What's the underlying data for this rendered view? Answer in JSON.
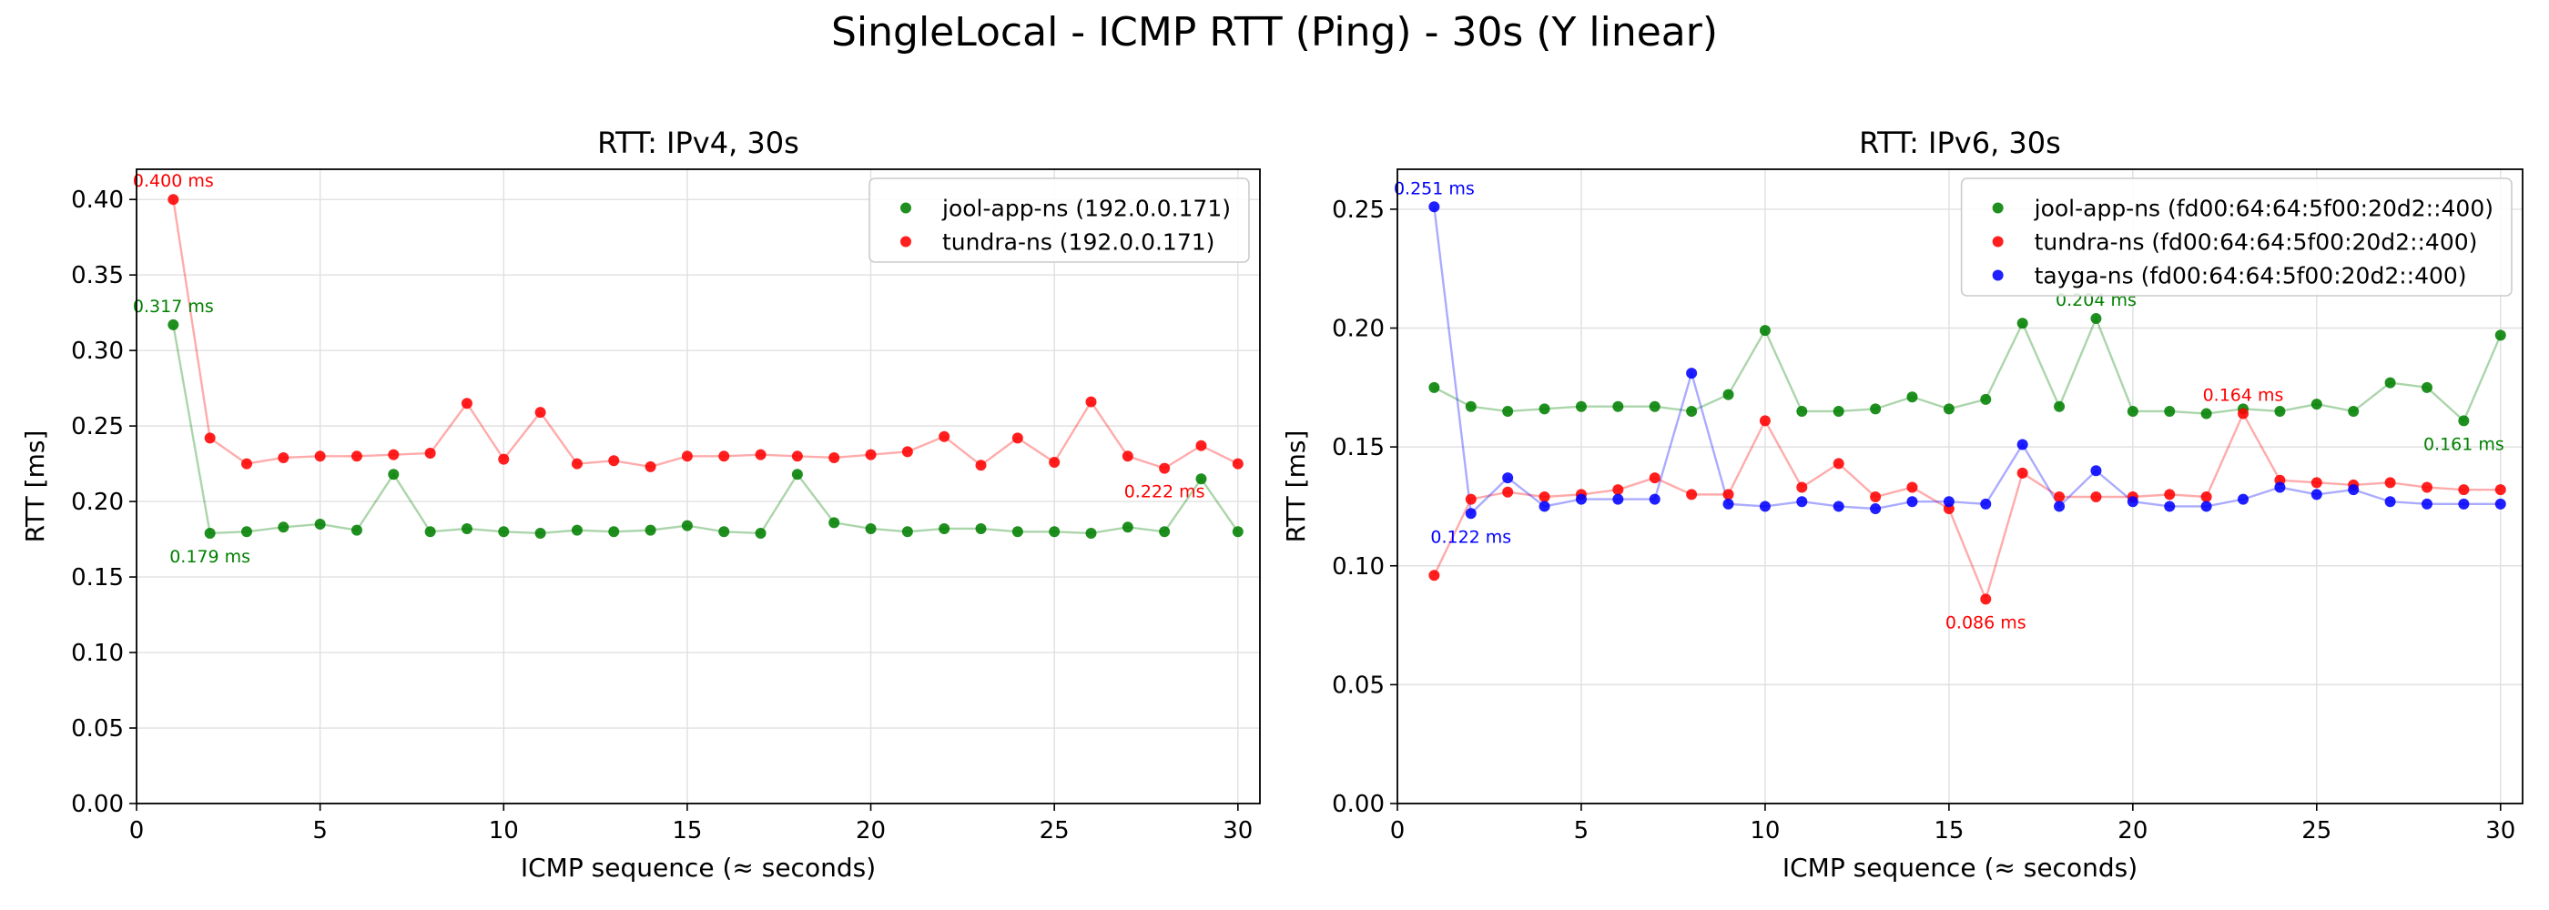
{
  "figure": {
    "title": "SingleLocal - ICMP RTT (Ping) - 30s (Y linear)"
  },
  "colors": {
    "green": "#008000",
    "red": "#ff0000",
    "blue": "#0000ff",
    "grid": "#e0e0e0"
  },
  "chart_data": [
    {
      "type": "line",
      "title": "RTT: IPv4, 30s",
      "xlabel": "ICMP sequence (≈ seconds)",
      "ylabel": "RTT [ms]",
      "xlim": [
        0,
        30.6
      ],
      "ylim": [
        0,
        0.42
      ],
      "xticks": [
        0,
        5,
        10,
        15,
        20,
        25,
        30
      ],
      "yticks": [
        0.0,
        0.05,
        0.1,
        0.15,
        0.2,
        0.25,
        0.3,
        0.35,
        0.4
      ],
      "ytick_labels": [
        "0.00",
        "0.05",
        "0.10",
        "0.15",
        "0.20",
        "0.25",
        "0.30",
        "0.35",
        "0.40"
      ],
      "grid": true,
      "legend_position": "top-right",
      "x": [
        1,
        2,
        3,
        4,
        5,
        6,
        7,
        8,
        9,
        10,
        11,
        12,
        13,
        14,
        15,
        16,
        17,
        18,
        19,
        20,
        21,
        22,
        23,
        24,
        25,
        26,
        27,
        28,
        29,
        30
      ],
      "series": [
        {
          "name": "jool-app-ns (192.0.0.171)",
          "color": "#008000",
          "values": [
            0.317,
            0.179,
            0.18,
            0.183,
            0.185,
            0.181,
            0.218,
            0.18,
            0.182,
            0.18,
            0.179,
            0.181,
            0.18,
            0.181,
            0.184,
            0.18,
            0.179,
            0.218,
            0.186,
            0.182,
            0.18,
            0.182,
            0.182,
            0.18,
            0.18,
            0.179,
            0.183,
            0.18,
            0.215,
            0.18
          ]
        },
        {
          "name": "tundra-ns (192.0.0.171)",
          "color": "#ff0000",
          "values": [
            0.4,
            0.242,
            0.225,
            0.229,
            0.23,
            0.23,
            0.231,
            0.232,
            0.265,
            0.228,
            0.259,
            0.225,
            0.227,
            0.223,
            0.23,
            0.23,
            0.231,
            0.23,
            0.229,
            0.231,
            0.233,
            0.243,
            0.224,
            0.242,
            0.226,
            0.266,
            0.23,
            0.222,
            0.237,
            0.225
          ]
        }
      ],
      "annotations": [
        {
          "text": "0.400 ms",
          "x": 1,
          "y": 0.4,
          "color": "#ff0000",
          "pos": "above"
        },
        {
          "text": "0.317 ms",
          "x": 1,
          "y": 0.317,
          "color": "#008000",
          "pos": "above"
        },
        {
          "text": "0.179 ms",
          "x": 2,
          "y": 0.179,
          "color": "#008000",
          "pos": "below"
        },
        {
          "text": "0.222 ms",
          "x": 28,
          "y": 0.222,
          "color": "#ff0000",
          "pos": "below"
        }
      ]
    },
    {
      "type": "line",
      "title": "RTT: IPv6, 30s",
      "xlabel": "ICMP sequence (≈ seconds)",
      "ylabel": "RTT [ms]",
      "xlim": [
        0,
        30.6
      ],
      "ylim": [
        0,
        0.2668
      ],
      "xticks": [
        0,
        5,
        10,
        15,
        20,
        25,
        30
      ],
      "yticks": [
        0.0,
        0.05,
        0.1,
        0.15,
        0.2,
        0.25
      ],
      "ytick_labels": [
        "0.00",
        "0.05",
        "0.10",
        "0.15",
        "0.20",
        "0.25"
      ],
      "grid": true,
      "legend_position": "top-right",
      "x": [
        1,
        2,
        3,
        4,
        5,
        6,
        7,
        8,
        9,
        10,
        11,
        12,
        13,
        14,
        15,
        16,
        17,
        18,
        19,
        20,
        21,
        22,
        23,
        24,
        25,
        26,
        27,
        28,
        29,
        30
      ],
      "series": [
        {
          "name": "jool-app-ns (fd00:64:64:5f00:20d2::400)",
          "color": "#008000",
          "values": [
            0.175,
            0.167,
            0.165,
            0.166,
            0.167,
            0.167,
            0.167,
            0.165,
            0.172,
            0.199,
            0.165,
            0.165,
            0.166,
            0.171,
            0.166,
            0.17,
            0.202,
            0.167,
            0.204,
            0.165,
            0.165,
            0.164,
            0.166,
            0.165,
            0.168,
            0.165,
            0.177,
            0.175,
            0.161,
            0.197
          ]
        },
        {
          "name": "tundra-ns (fd00:64:64:5f00:20d2::400)",
          "color": "#ff0000",
          "values": [
            0.096,
            0.128,
            0.131,
            0.129,
            0.13,
            0.132,
            0.137,
            0.13,
            0.13,
            0.161,
            0.133,
            0.143,
            0.129,
            0.133,
            0.124,
            0.086,
            0.139,
            0.129,
            0.129,
            0.129,
            0.13,
            0.129,
            0.164,
            0.136,
            0.135,
            0.134,
            0.135,
            0.133,
            0.132,
            0.132
          ]
        },
        {
          "name": "tayga-ns (fd00:64:64:5f00:20d2::400)",
          "color": "#0000ff",
          "values": [
            0.251,
            0.122,
            0.137,
            0.125,
            0.128,
            0.128,
            0.128,
            0.181,
            0.126,
            0.125,
            0.127,
            0.125,
            0.124,
            0.127,
            0.127,
            0.126,
            0.151,
            0.125,
            0.14,
            0.127,
            0.125,
            0.125,
            0.128,
            0.133,
            0.13,
            0.132,
            0.127,
            0.126,
            0.126,
            0.126
          ]
        }
      ],
      "annotations": [
        {
          "text": "0.251 ms",
          "x": 1,
          "y": 0.251,
          "color": "#0000ff",
          "pos": "above"
        },
        {
          "text": "0.122 ms",
          "x": 2,
          "y": 0.122,
          "color": "#0000ff",
          "pos": "below"
        },
        {
          "text": "0.204 ms",
          "x": 19,
          "y": 0.204,
          "color": "#008000",
          "pos": "above"
        },
        {
          "text": "0.164 ms",
          "x": 23,
          "y": 0.164,
          "color": "#ff0000",
          "pos": "above"
        },
        {
          "text": "0.086 ms",
          "x": 16,
          "y": 0.086,
          "color": "#ff0000",
          "pos": "below"
        },
        {
          "text": "0.161 ms",
          "x": 29,
          "y": 0.161,
          "color": "#008000",
          "pos": "below"
        }
      ]
    }
  ]
}
